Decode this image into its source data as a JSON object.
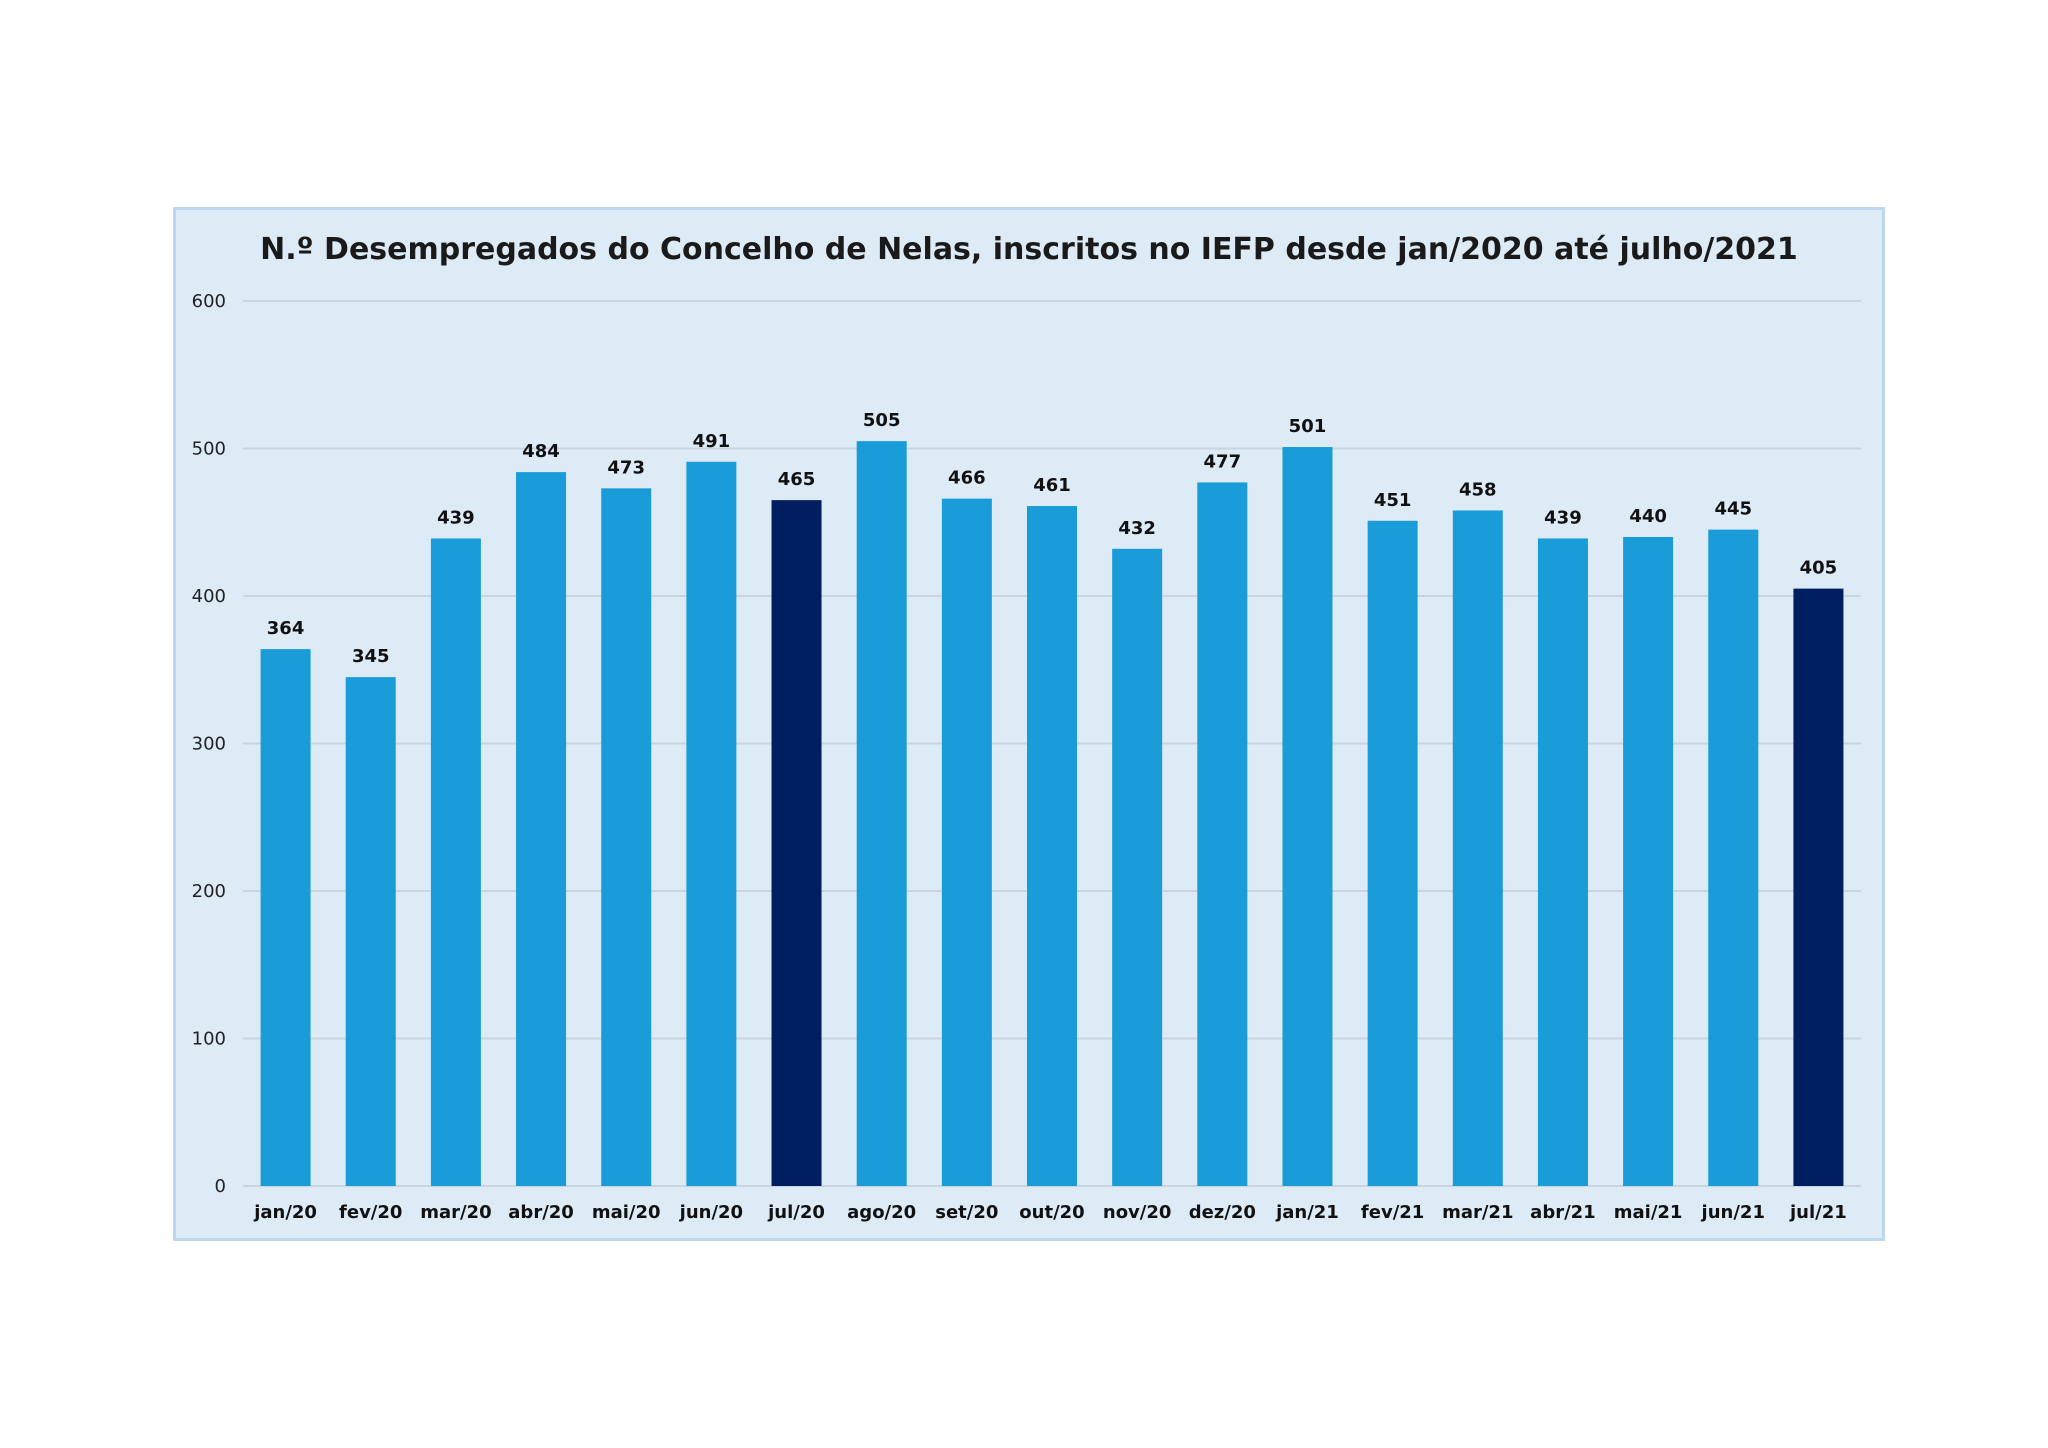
{
  "chart_data": {
    "type": "bar",
    "title": "N.º Desempregados do Concelho de Nelas, inscritos no IEFP desde jan/2020 até julho/2021",
    "categories": [
      "jan/20",
      "fev/20",
      "mar/20",
      "abr/20",
      "mai/20",
      "jun/20",
      "jul/20",
      "ago/20",
      "set/20",
      "out/20",
      "nov/20",
      "dez/20",
      "jan/21",
      "fev/21",
      "mar/21",
      "abr/21",
      "mai/21",
      "jun/21",
      "jul/21"
    ],
    "values": [
      364,
      345,
      439,
      484,
      473,
      491,
      465,
      505,
      466,
      461,
      432,
      477,
      501,
      451,
      458,
      439,
      440,
      445,
      405
    ],
    "highlighted_categories": [
      "jul/20",
      "jul/21"
    ],
    "ylim": [
      0,
      600
    ],
    "yticks": [
      0,
      100,
      200,
      300,
      400,
      500,
      600
    ],
    "grid": true,
    "xlabel": "",
    "ylabel": "",
    "colors": {
      "bar": "#1a9cd8",
      "bar_highlight": "#001e60",
      "gridline": "#c9d4de",
      "background": "#ddebf7",
      "border": "#bdd7ee"
    }
  }
}
